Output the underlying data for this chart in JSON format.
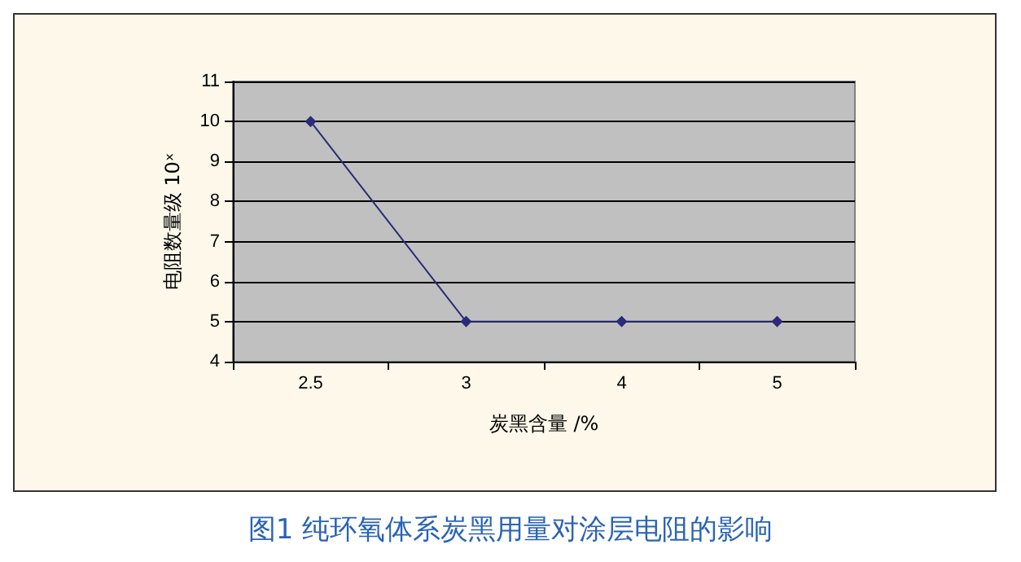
{
  "chart_data": {
    "type": "line",
    "title": "图1 纯环氧体系炭黑用量对涂层电阻的影响",
    "xlabel": "炭黑含量 /%",
    "ylabel": "电阻数量级 10ˣ",
    "categories": [
      "2.5",
      "3",
      "4",
      "5"
    ],
    "series": [
      {
        "color": "#2b2b78",
        "values": [
          10,
          5,
          5,
          5
        ]
      }
    ],
    "ylim": [
      4,
      11
    ],
    "yticks": [
      4,
      5,
      6,
      7,
      8,
      9,
      10,
      11
    ],
    "grid": "y",
    "marker": "diamond",
    "line_style": "solid"
  }
}
